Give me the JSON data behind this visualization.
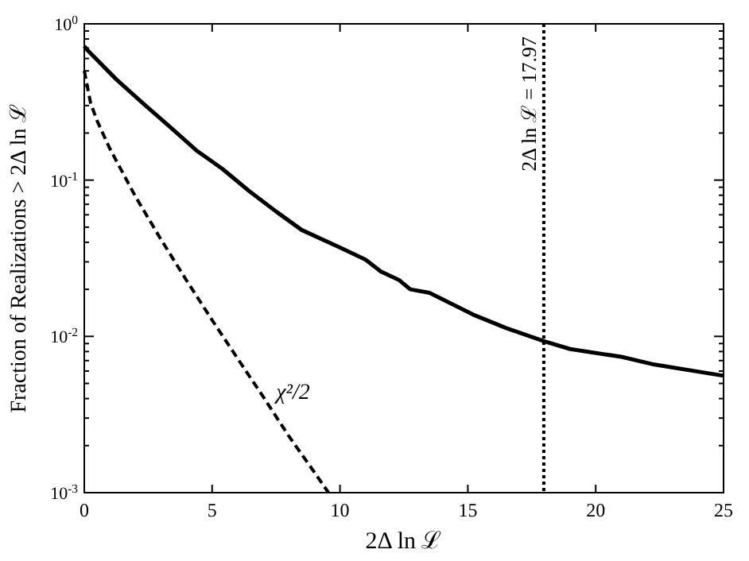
{
  "chart_data": {
    "type": "line",
    "xlabel": "2Δ ln ℒ",
    "ylabel": "Fraction of Realizations > 2Δ ln ℒ",
    "log": "y",
    "grid": false,
    "xlim": [
      0,
      25
    ],
    "xticks": [
      0,
      5,
      10,
      15,
      20,
      25
    ],
    "ylim": [
      0.001,
      1
    ],
    "yticks": [
      {
        "value": 0.001,
        "label": "10$^{-3}$"
      },
      {
        "value": 0.01,
        "label": "10$^{-2}$"
      },
      {
        "value": 0.1,
        "label": "10$^{-1}$"
      },
      {
        "value": 1,
        "label": "10$^{0}$"
      }
    ],
    "series": [
      {
        "color": "#000000",
        "line_style": "solid",
        "x": [
          0,
          0.12,
          1.26,
          2.3,
          3.34,
          4.38,
          5.4,
          6.45,
          7.5,
          8.5,
          10,
          11,
          11.6,
          12.3,
          12.75,
          13.5,
          15.2,
          16.5,
          18.0,
          19.0,
          21,
          22.3,
          25
        ],
        "values": [
          0.72,
          0.68,
          0.44,
          0.31,
          0.22,
          0.155,
          0.118,
          0.085,
          0.063,
          0.048,
          0.037,
          0.031,
          0.026,
          0.023,
          0.02,
          0.019,
          0.0138,
          0.0113,
          0.0093,
          0.0083,
          0.0074,
          0.0066,
          0.0056
        ]
      },
      {
        "color": "#000000",
        "line_style": "dashed",
        "x": [
          0,
          0.25,
          0.5,
          1,
          2,
          3,
          4,
          5,
          6,
          7,
          8,
          9,
          9.55
        ],
        "values": [
          0.5,
          0.31,
          0.24,
          0.159,
          0.0786,
          0.0417,
          0.0228,
          0.0127,
          0.0072,
          0.0041,
          0.0023,
          0.00135,
          0.001
        ]
      }
    ],
    "ref_lines": [
      {
        "axis": "x",
        "value": 17.97,
        "label": "2Δ ln ℒ = 17.97",
        "color": "#000000",
        "line_style": "dotted"
      }
    ],
    "annotations": [
      "χ²/2"
    ]
  }
}
